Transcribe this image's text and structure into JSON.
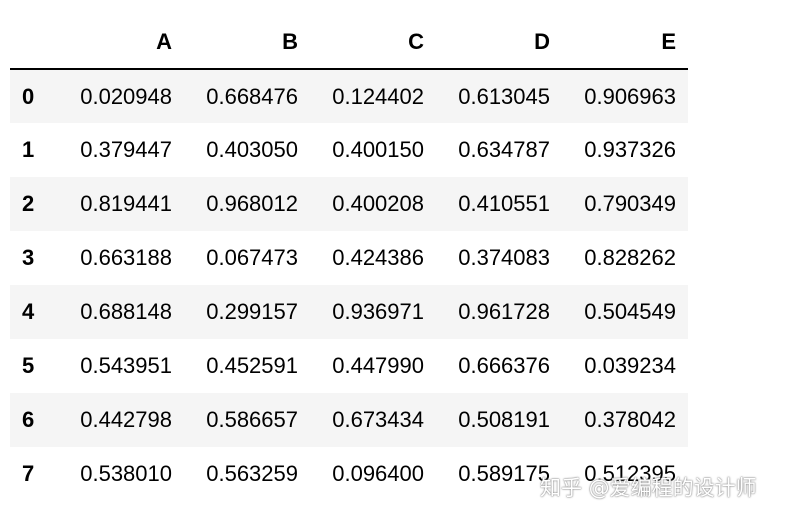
{
  "table": {
    "columns": [
      "A",
      "B",
      "C",
      "D",
      "E"
    ],
    "index": [
      "0",
      "1",
      "2",
      "3",
      "4",
      "5",
      "6",
      "7"
    ],
    "rows": [
      [
        "0.020948",
        "0.668476",
        "0.124402",
        "0.613045",
        "0.906963"
      ],
      [
        "0.379447",
        "0.403050",
        "0.400150",
        "0.634787",
        "0.937326"
      ],
      [
        "0.819441",
        "0.968012",
        "0.400208",
        "0.410551",
        "0.790349"
      ],
      [
        "0.663188",
        "0.067473",
        "0.424386",
        "0.374083",
        "0.828262"
      ],
      [
        "0.688148",
        "0.299157",
        "0.936971",
        "0.961728",
        "0.504549"
      ],
      [
        "0.543951",
        "0.452591",
        "0.447990",
        "0.666376",
        "0.039234"
      ],
      [
        "0.442798",
        "0.586657",
        "0.673434",
        "0.508191",
        "0.378042"
      ],
      [
        "0.538010",
        "0.563259",
        "0.096400",
        "0.589175",
        "0.512395"
      ]
    ]
  },
  "watermark": "知乎 @爱编程的设计师"
}
